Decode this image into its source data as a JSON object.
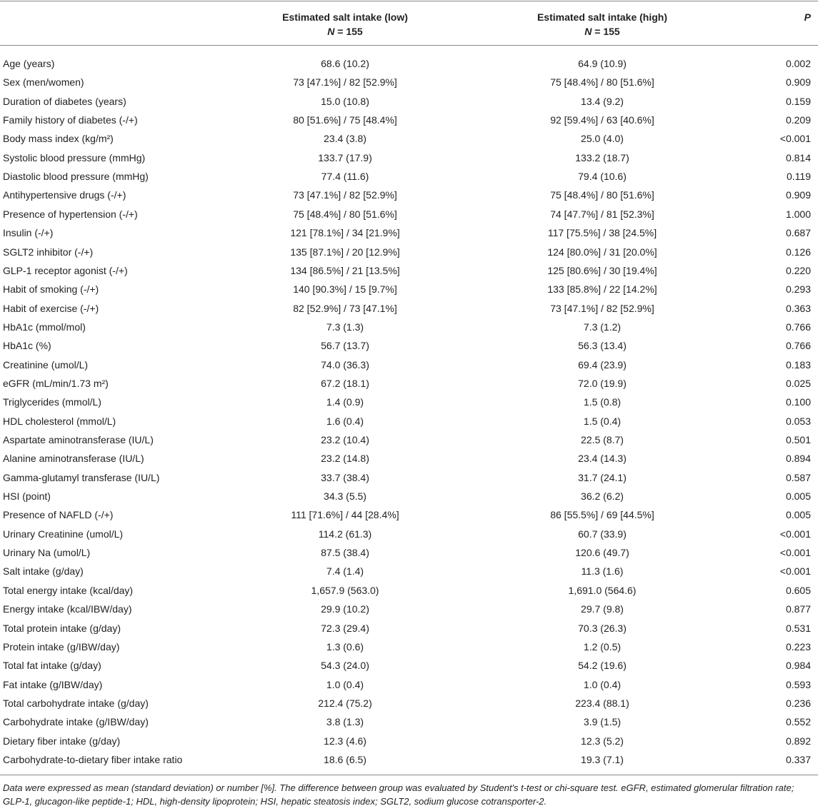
{
  "table": {
    "header": [
      {
        "title": "Estimated salt intake (low)",
        "n_label": "N",
        "n_value": "= 155"
      },
      {
        "title": "Estimated salt intake (high)",
        "n_label": "N",
        "n_value": "= 155"
      },
      {
        "title": "P"
      }
    ],
    "rows": [
      [
        "Age (years)",
        "68.6 (10.2)",
        "64.9 (10.9)",
        "0.002"
      ],
      [
        "Sex (men/women)",
        "73 [47.1%] / 82 [52.9%]",
        "75 [48.4%] / 80 [51.6%]",
        "0.909"
      ],
      [
        "Duration of diabetes (years)",
        "15.0 (10.8)",
        "13.4 (9.2)",
        "0.159"
      ],
      [
        "Family history of diabetes (-/+)",
        "80 [51.6%] / 75 [48.4%]",
        "92 [59.4%] / 63 [40.6%]",
        "0.209"
      ],
      [
        "Body mass index (kg/m²)",
        "23.4 (3.8)",
        "25.0 (4.0)",
        "<0.001"
      ],
      [
        "Systolic blood pressure (mmHg)",
        "133.7 (17.9)",
        "133.2 (18.7)",
        "0.814"
      ],
      [
        "Diastolic blood pressure (mmHg)",
        "77.4 (11.6)",
        "79.4 (10.6)",
        "0.119"
      ],
      [
        "Antihypertensive drugs (-/+)",
        "73 [47.1%] / 82 [52.9%]",
        "75 [48.4%] / 80 [51.6%]",
        "0.909"
      ],
      [
        "Presence of hypertension (-/+)",
        "75 [48.4%] / 80 [51.6%]",
        "74 [47.7%] / 81 [52.3%]",
        "1.000"
      ],
      [
        "Insulin (-/+)",
        "121 [78.1%] / 34 [21.9%]",
        "117 [75.5%] / 38 [24.5%]",
        "0.687"
      ],
      [
        "SGLT2 inhibitor (-/+)",
        "135 [87.1%] / 20 [12.9%]",
        "124 [80.0%] / 31 [20.0%]",
        "0.126"
      ],
      [
        "GLP-1 receptor agonist (-/+)",
        "134 [86.5%] / 21 [13.5%]",
        "125 [80.6%] / 30 [19.4%]",
        "0.220"
      ],
      [
        "Habit of smoking (-/+)",
        "140 [90.3%] / 15 [9.7%]",
        "133 [85.8%] / 22 [14.2%]",
        "0.293"
      ],
      [
        "Habit of exercise (-/+)",
        "82 [52.9%] / 73 [47.1%]",
        "73 [47.1%] / 82 [52.9%]",
        "0.363"
      ],
      [
        "HbA1c (mmol/mol)",
        "7.3 (1.3)",
        "7.3 (1.2)",
        "0.766"
      ],
      [
        "HbA1c (%)",
        "56.7 (13.7)",
        "56.3 (13.4)",
        "0.766"
      ],
      [
        "Creatinine (umol/L)",
        "74.0 (36.3)",
        "69.4 (23.9)",
        "0.183"
      ],
      [
        "eGFR (mL/min/1.73 m²)",
        "67.2 (18.1)",
        "72.0 (19.9)",
        "0.025"
      ],
      [
        "Triglycerides (mmol/L)",
        "1.4 (0.9)",
        "1.5 (0.8)",
        "0.100"
      ],
      [
        "HDL cholesterol (mmol/L)",
        "1.6 (0.4)",
        "1.5 (0.4)",
        "0.053"
      ],
      [
        "Aspartate aminotransferase (IU/L)",
        "23.2 (10.4)",
        "22.5 (8.7)",
        "0.501"
      ],
      [
        "Alanine aminotransferase (IU/L)",
        "23.2 (14.8)",
        "23.4 (14.3)",
        "0.894"
      ],
      [
        "Gamma-glutamyl transferase (IU/L)",
        "33.7 (38.4)",
        "31.7 (24.1)",
        "0.587"
      ],
      [
        "HSI (point)",
        "34.3 (5.5)",
        "36.2 (6.2)",
        "0.005"
      ],
      [
        "Presence of NAFLD (-/+)",
        "111 [71.6%] / 44 [28.4%]",
        "86 [55.5%] / 69 [44.5%]",
        "0.005"
      ],
      [
        "Urinary Creatinine (umol/L)",
        "114.2 (61.3)",
        "60.7 (33.9)",
        "<0.001"
      ],
      [
        "Urinary Na (umol/L)",
        "87.5 (38.4)",
        "120.6 (49.7)",
        "<0.001"
      ],
      [
        "Salt intake (g/day)",
        "7.4 (1.4)",
        "11.3 (1.6)",
        "<0.001"
      ],
      [
        "Total energy intake (kcal/day)",
        "1,657.9 (563.0)",
        "1,691.0 (564.6)",
        "0.605"
      ],
      [
        "Energy intake (kcal/IBW/day)",
        "29.9 (10.2)",
        "29.7 (9.8)",
        "0.877"
      ],
      [
        "Total protein intake (g/day)",
        "72.3 (29.4)",
        "70.3 (26.3)",
        "0.531"
      ],
      [
        "Protein intake (g/IBW/day)",
        "1.3 (0.6)",
        "1.2 (0.5)",
        "0.223"
      ],
      [
        "Total fat intake (g/day)",
        "54.3 (24.0)",
        "54.2 (19.6)",
        "0.984"
      ],
      [
        "Fat intake (g/IBW/day)",
        "1.0 (0.4)",
        "1.0 (0.4)",
        "0.593"
      ],
      [
        "Total carbohydrate intake (g/day)",
        "212.4 (75.2)",
        "223.4 (88.1)",
        "0.236"
      ],
      [
        "Carbohydrate intake (g/IBW/day)",
        "3.8 (1.3)",
        "3.9 (1.5)",
        "0.552"
      ],
      [
        "Dietary fiber intake (g/day)",
        "12.3 (4.6)",
        "12.3 (5.2)",
        "0.892"
      ],
      [
        "Carbohydrate-to-dietary fiber intake ratio",
        "18.6 (6.5)",
        "19.3 (7.1)",
        "0.337"
      ]
    ],
    "footnote": "Data were expressed as mean (standard deviation) or number [%]. The difference between group was evaluated by Student's t-test or chi-square test. eGFR, estimated glomerular filtration rate; GLP-1, glucagon-like peptide-1; HDL, high-density lipoprotein; HSI, hepatic steatosis index; SGLT2, sodium glucose cotransporter-2."
  }
}
